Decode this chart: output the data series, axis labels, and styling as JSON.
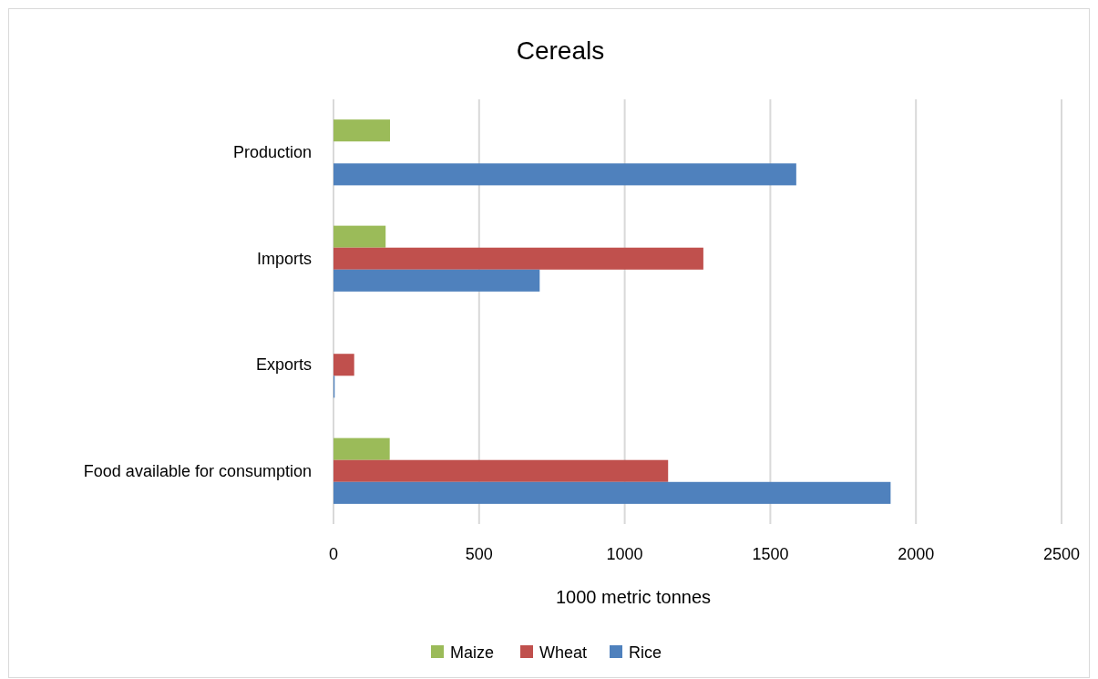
{
  "chart_data": {
    "type": "bar",
    "orientation": "horizontal",
    "title": "Cereals",
    "xlabel": "1000 metric tonnes",
    "categories": [
      "Production",
      "Imports",
      "Exports",
      "Food available for consumption"
    ],
    "series": [
      {
        "name": "Maize",
        "color": "#9bbb59",
        "values": [
          194,
          179,
          null,
          193
        ]
      },
      {
        "name": "Wheat",
        "color": "#c0504d",
        "values": [
          null,
          1270,
          71,
          1149
        ]
      },
      {
        "name": "Rice",
        "color": "#4f81bd",
        "values": [
          1589,
          708,
          4,
          1913
        ]
      }
    ],
    "xlim": [
      0,
      2500
    ],
    "xticks": [
      0,
      500,
      1000,
      1500,
      2000,
      2500
    ],
    "grid": true,
    "legend": "bottom"
  }
}
